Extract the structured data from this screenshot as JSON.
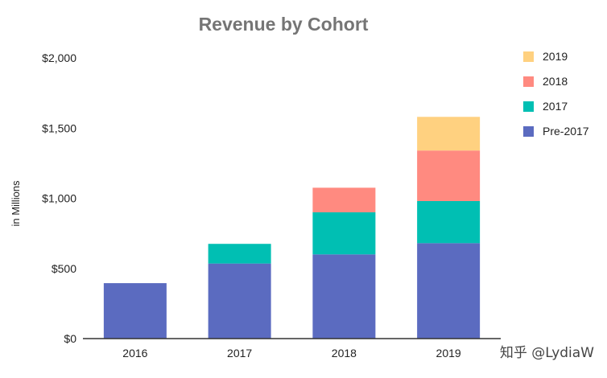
{
  "chart_data": {
    "type": "bar",
    "stacked": true,
    "title": "Revenue by Cohort",
    "xlabel": "",
    "ylabel": "in Millions",
    "categories": [
      "2016",
      "2017",
      "2018",
      "2019"
    ],
    "series": [
      {
        "name": "Pre-2017",
        "color": "#5B6BC0",
        "values": [
          395,
          535,
          600,
          680
        ]
      },
      {
        "name": "2017",
        "color": "#00BFB3",
        "values": [
          0,
          140,
          300,
          300
        ]
      },
      {
        "name": "2018",
        "color": "#FF8A80",
        "values": [
          0,
          0,
          175,
          360
        ]
      },
      {
        "name": "2019",
        "color": "#FFD180",
        "values": [
          0,
          0,
          0,
          240
        ]
      }
    ],
    "ylim": [
      0,
      2000
    ],
    "yticks": [
      0,
      500,
      1000,
      1500,
      2000
    ],
    "ytick_labels": [
      "$0",
      "$500",
      "$1,000",
      "$1,500",
      "$2,000"
    ],
    "grid": false,
    "legend_position": "right",
    "legend_order": [
      "2019",
      "2018",
      "2017",
      "Pre-2017"
    ]
  },
  "watermark": "知乎 @LydiaW"
}
